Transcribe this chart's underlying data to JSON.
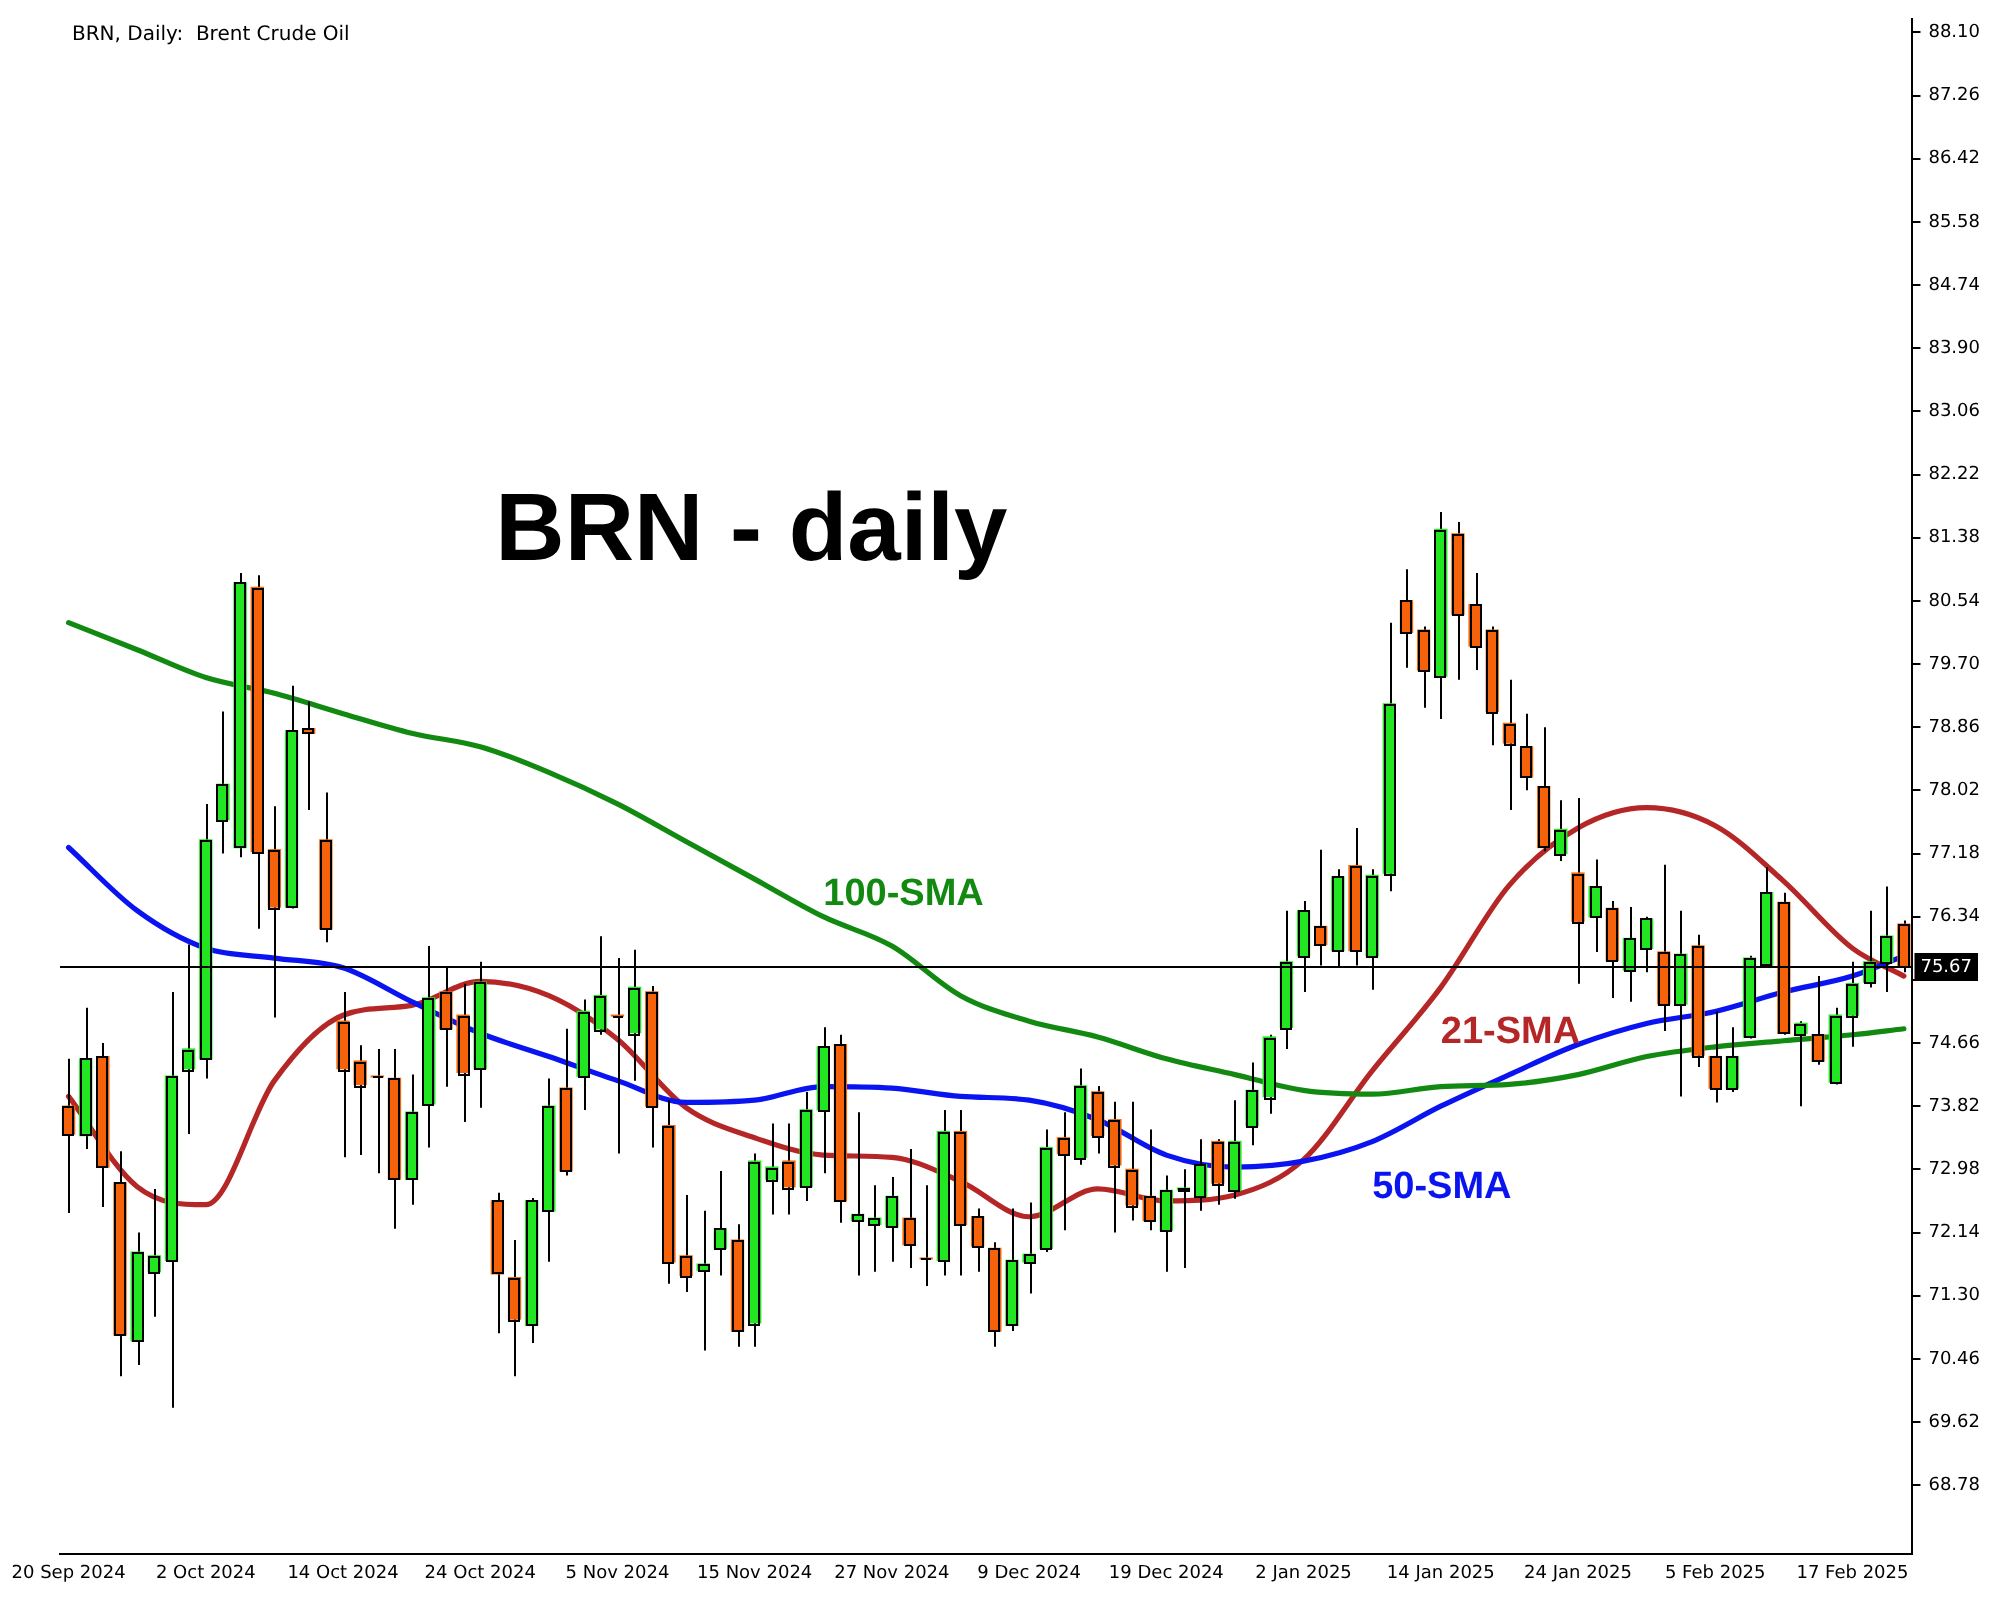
{
  "chart_data": {
    "type": "candlestick",
    "title": "BRN, Daily:  Brent Crude Oil",
    "subtitle": "BRN - daily",
    "categories": [
      "20 Sep 2024",
      null,
      null,
      null,
      null,
      null,
      null,
      null,
      "2 Oct 2024",
      null,
      null,
      null,
      null,
      null,
      null,
      null,
      "14 Oct 2024",
      null,
      null,
      null,
      null,
      null,
      null,
      null,
      "24 Oct 2024",
      null,
      null,
      null,
      null,
      null,
      null,
      null,
      "5 Nov 2024",
      null,
      null,
      null,
      null,
      null,
      null,
      null,
      "15 Nov 2024",
      null,
      null,
      null,
      null,
      null,
      null,
      null,
      "27 Nov 2024",
      null,
      null,
      null,
      null,
      null,
      null,
      null,
      "9 Dec 2024",
      null,
      null,
      null,
      null,
      null,
      null,
      null,
      "19 Dec 2024",
      null,
      null,
      null,
      null,
      null,
      null,
      null,
      "2 Jan 2025",
      null,
      null,
      null,
      null,
      null,
      null,
      null,
      "14 Jan 2025",
      null,
      null,
      null,
      null,
      null,
      null,
      null,
      "24 Jan 2025",
      null,
      null,
      null,
      null,
      null,
      null,
      null,
      "5 Feb 2025",
      null,
      null,
      null,
      null,
      null,
      null,
      null,
      "17 Feb 2025",
      null,
      null,
      null
    ],
    "ohlc": [
      [
        73.82,
        74.45,
        72.4,
        73.45
      ],
      [
        73.43,
        75.13,
        73.25,
        74.45
      ],
      [
        74.48,
        74.66,
        72.48,
        73.01
      ],
      [
        72.8,
        73.22,
        70.23,
        70.78
      ],
      [
        70.7,
        72.14,
        70.38,
        71.88
      ],
      [
        71.62,
        72.72,
        71.02,
        71.83
      ],
      [
        71.77,
        75.34,
        69.81,
        74.22
      ],
      [
        74.32,
        75.97,
        73.45,
        74.58
      ],
      [
        74.45,
        77.84,
        74.19,
        77.36
      ],
      [
        77.63,
        79.07,
        77.18,
        78.1
      ],
      [
        77.26,
        80.91,
        77.13,
        80.78
      ],
      [
        80.72,
        80.88,
        76.18,
        77.21
      ],
      [
        77.23,
        77.81,
        75.0,
        76.47
      ],
      [
        76.47,
        79.41,
        76.45,
        78.81
      ],
      [
        78.84,
        79.2,
        77.76,
        78.78
      ],
      [
        77.36,
        77.99,
        76.0,
        76.18
      ],
      [
        74.95,
        75.34,
        73.14,
        74.32
      ],
      [
        74.42,
        74.63,
        73.17,
        74.11
      ],
      [
        74.22,
        74.58,
        72.93,
        74.21
      ],
      [
        74.19,
        74.58,
        72.19,
        72.85
      ],
      [
        72.85,
        74.24,
        72.51,
        73.74
      ],
      [
        73.85,
        75.95,
        73.27,
        75.26
      ],
      [
        75.34,
        75.66,
        74.08,
        74.85
      ],
      [
        75.03,
        75.45,
        73.61,
        74.27
      ],
      [
        74.32,
        75.74,
        73.8,
        75.47
      ],
      [
        72.56,
        72.67,
        70.8,
        71.59
      ],
      [
        71.54,
        72.04,
        70.23,
        70.99
      ],
      [
        70.91,
        72.6,
        70.67,
        72.56
      ],
      [
        72.43,
        74.19,
        71.75,
        73.82
      ],
      [
        74.06,
        74.85,
        72.9,
        72.96
      ],
      [
        74.22,
        75.24,
        73.77,
        75.08
      ],
      [
        74.85,
        76.08,
        74.77,
        75.29
      ],
      [
        75.03,
        75.79,
        73.19,
        75.02
      ],
      [
        74.8,
        75.9,
        74.16,
        75.4
      ],
      [
        75.34,
        75.42,
        73.27,
        73.82
      ],
      [
        73.56,
        73.9,
        71.46,
        71.75
      ],
      [
        71.83,
        72.64,
        71.35,
        71.57
      ],
      [
        71.64,
        72.43,
        70.57,
        71.72
      ],
      [
        71.93,
        72.96,
        71.57,
        72.19
      ],
      [
        72.04,
        72.25,
        70.62,
        70.83
      ],
      [
        70.94,
        73.19,
        70.62,
        73.09
      ],
      [
        72.85,
        73.59,
        72.38,
        73.01
      ],
      [
        73.09,
        73.59,
        72.38,
        72.75
      ],
      [
        72.75,
        74.01,
        72.56,
        73.77
      ],
      [
        73.77,
        74.87,
        72.93,
        74.61
      ],
      [
        74.64,
        74.77,
        72.27,
        72.56
      ],
      [
        72.3,
        73.74,
        71.57,
        72.38
      ],
      [
        72.25,
        72.77,
        71.62,
        72.33
      ],
      [
        72.22,
        72.88,
        71.75,
        72.62
      ],
      [
        72.33,
        73.25,
        71.67,
        71.98
      ],
      [
        71.8,
        72.77,
        71.43,
        71.79
      ],
      [
        71.77,
        73.77,
        71.57,
        73.48
      ],
      [
        73.48,
        73.77,
        71.57,
        72.25
      ],
      [
        72.35,
        72.46,
        71.62,
        71.96
      ],
      [
        71.93,
        72.01,
        70.62,
        70.83
      ],
      [
        70.91,
        72.46,
        70.83,
        71.77
      ],
      [
        71.75,
        72.54,
        71.33,
        71.85
      ],
      [
        71.93,
        73.51,
        71.88,
        73.27
      ],
      [
        73.4,
        73.74,
        72.17,
        73.19
      ],
      [
        73.14,
        74.32,
        73.04,
        74.09
      ],
      [
        74.01,
        74.09,
        73.19,
        73.43
      ],
      [
        73.64,
        73.88,
        72.14,
        73.04
      ],
      [
        72.98,
        73.88,
        72.3,
        72.51
      ],
      [
        72.62,
        73.51,
        72.17,
        72.3
      ],
      [
        72.17,
        72.9,
        71.62,
        72.7
      ],
      [
        72.71,
        72.98,
        71.67,
        72.73
      ],
      [
        72.62,
        73.38,
        72.43,
        73.04
      ],
      [
        73.35,
        73.38,
        72.51,
        72.8
      ],
      [
        72.7,
        73.9,
        72.59,
        73.35
      ],
      [
        73.56,
        74.4,
        73.3,
        74.03
      ],
      [
        73.95,
        74.77,
        73.72,
        74.74
      ],
      [
        74.87,
        76.42,
        74.58,
        75.74
      ],
      [
        75.82,
        76.55,
        75.34,
        76.42
      ],
      [
        76.21,
        77.23,
        75.69,
        75.97
      ],
      [
        75.89,
        76.97,
        75.66,
        76.87
      ],
      [
        77.02,
        77.52,
        75.69,
        75.89
      ],
      [
        75.82,
        76.97,
        75.37,
        76.89
      ],
      [
        76.92,
        80.25,
        76.68,
        79.17
      ],
      [
        80.54,
        80.96,
        79.65,
        80.12
      ],
      [
        80.15,
        80.2,
        79.12,
        79.62
      ],
      [
        79.54,
        81.72,
        78.97,
        81.49
      ],
      [
        81.43,
        81.59,
        79.49,
        80.36
      ],
      [
        80.49,
        80.91,
        79.62,
        79.94
      ],
      [
        80.15,
        80.2,
        78.62,
        79.07
      ],
      [
        78.91,
        79.49,
        77.76,
        78.65
      ],
      [
        78.6,
        79.04,
        78.02,
        78.2
      ],
      [
        78.07,
        78.86,
        77.21,
        77.26
      ],
      [
        77.18,
        77.89,
        77.08,
        77.5
      ],
      [
        76.92,
        77.92,
        75.45,
        76.28
      ],
      [
        76.34,
        77.1,
        75.87,
        76.74
      ],
      [
        76.45,
        76.55,
        75.26,
        75.76
      ],
      [
        75.63,
        76.47,
        75.21,
        76.05
      ],
      [
        75.92,
        76.34,
        75.6,
        76.31
      ],
      [
        75.87,
        77.03,
        74.82,
        75.18
      ],
      [
        75.18,
        76.42,
        73.95,
        75.84
      ],
      [
        75.95,
        76.1,
        74.34,
        74.5
      ],
      [
        74.48,
        75.08,
        73.87,
        74.06
      ],
      [
        74.06,
        74.87,
        74.01,
        74.48
      ],
      [
        74.74,
        75.82,
        74.72,
        75.79
      ],
      [
        75.69,
        77.0,
        75.66,
        76.66
      ],
      [
        76.53,
        76.66,
        74.77,
        74.79
      ],
      [
        74.79,
        74.95,
        73.82,
        74.92
      ],
      [
        74.77,
        75.55,
        74.37,
        74.42
      ],
      [
        74.14,
        75.13,
        74.11,
        75.03
      ],
      [
        75.03,
        75.74,
        74.61,
        75.45
      ],
      [
        75.47,
        76.42,
        75.4,
        75.74
      ],
      [
        75.74,
        76.74,
        75.34,
        76.08
      ],
      [
        76.24,
        76.29,
        75.6,
        75.67
      ]
    ],
    "colors": [
      "#f5620a",
      "#22e622",
      "#f5620a",
      "#f5620a",
      "#22e622",
      "#22e622",
      "#22e622",
      "#22e622",
      "#22e622",
      "#22e622",
      "#22e622",
      "#f5620a",
      "#f5620a",
      "#22e622",
      "#f5620a",
      "#f5620a",
      "#f5620a",
      "#f5620a",
      "#f5620a",
      "#f5620a",
      "#22e622",
      "#22e622",
      "#f5620a",
      "#f5620a",
      "#22e622",
      "#f5620a",
      "#f5620a",
      "#22e622",
      "#22e622",
      "#f5620a",
      "#22e622",
      "#22e622",
      "#f5620a",
      "#22e622",
      "#f5620a",
      "#f5620a",
      "#f5620a",
      "#22e622",
      "#22e622",
      "#f5620a",
      "#22e622",
      "#22e622",
      "#f5620a",
      "#22e622",
      "#22e622",
      "#f5620a",
      "#22e622",
      "#22e622",
      "#22e622",
      "#f5620a",
      "#f5620a",
      "#22e622",
      "#f5620a",
      "#f5620a",
      "#f5620a",
      "#22e622",
      "#22e622",
      "#22e622",
      "#f5620a",
      "#22e622",
      "#f5620a",
      "#f5620a",
      "#f5620a",
      "#f5620a",
      "#22e622",
      "#22e622",
      "#22e622",
      "#f5620a",
      "#22e622",
      "#22e622",
      "#22e622",
      "#22e622",
      "#22e622",
      "#f5620a",
      "#22e622",
      "#f5620a",
      "#22e622",
      "#22e622",
      "#f5620a",
      "#f5620a",
      "#22e622",
      "#f5620a",
      "#f5620a",
      "#f5620a",
      "#f5620a",
      "#f5620a",
      "#f5620a",
      "#22e622",
      "#f5620a",
      "#22e622",
      "#f5620a",
      "#22e622",
      "#22e622",
      "#f5620a",
      "#22e622",
      "#f5620a",
      "#f5620a",
      "#22e622",
      "#22e622",
      "#22e622",
      "#f5620a",
      "#22e622",
      "#f5620a",
      "#22e622",
      "#22e622",
      "#22e622",
      "#22e622",
      "#f5620a"
    ],
    "series": [
      {
        "name": "100-SMA",
        "type": "line",
        "color": "#128a12",
        "values": [
          80.25,
          null,
          null,
          null,
          79.89,
          null,
          null,
          null,
          79.52,
          null,
          null,
          null,
          79.31,
          null,
          null,
          null,
          79.04,
          null,
          null,
          null,
          78.78,
          null,
          null,
          null,
          78.6,
          null,
          null,
          null,
          78.26,
          null,
          null,
          null,
          77.84,
          null,
          null,
          null,
          77.34,
          null,
          null,
          null,
          76.84,
          null,
          null,
          null,
          76.34,
          null,
          null,
          null,
          75.95,
          null,
          null,
          null,
          75.29,
          null,
          null,
          null,
          74.95,
          null,
          null,
          null,
          74.74,
          null,
          null,
          null,
          74.45,
          null,
          null,
          null,
          74.24,
          null,
          null,
          null,
          74.03,
          null,
          null,
          null,
          73.98,
          null,
          null,
          null,
          74.08,
          null,
          null,
          null,
          74.11,
          null,
          null,
          null,
          74.24,
          null,
          null,
          null,
          74.48,
          null,
          null,
          null,
          74.61,
          null,
          null,
          null,
          74.69,
          null,
          null,
          null,
          74.77,
          null,
          null,
          74.85
        ]
      },
      {
        "name": "50-SMA",
        "type": "line",
        "color": "#0a14f0",
        "values": [
          77.26,
          null,
          null,
          null,
          76.42,
          null,
          null,
          null,
          75.92,
          null,
          null,
          null,
          75.79,
          null,
          null,
          null,
          75.66,
          null,
          null,
          null,
          75.21,
          null,
          null,
          null,
          74.79,
          null,
          null,
          null,
          74.48,
          null,
          null,
          null,
          74.16,
          null,
          null,
          null,
          73.87,
          null,
          null,
          null,
          73.9,
          null,
          null,
          null,
          74.08,
          null,
          null,
          null,
          74.06,
          null,
          null,
          null,
          73.95,
          null,
          null,
          null,
          73.9,
          null,
          null,
          null,
          73.64,
          null,
          null,
          null,
          73.17,
          null,
          null,
          null,
          73.01,
          null,
          null,
          null,
          73.09,
          null,
          null,
          null,
          73.35,
          null,
          null,
          null,
          73.82,
          null,
          null,
          null,
          74.24,
          null,
          null,
          null,
          74.64,
          null,
          null,
          null,
          74.92,
          null,
          null,
          null,
          75.08,
          null,
          null,
          null,
          75.34,
          null,
          null,
          null,
          75.55,
          null,
          null,
          75.82
        ]
      },
      {
        "name": "21-SMA",
        "type": "line",
        "color": "#b52626",
        "values": [
          73.95,
          null,
          null,
          null,
          72.75,
          null,
          null,
          null,
          72.51,
          null,
          null,
          null,
          74.16,
          null,
          null,
          null,
          75.03,
          null,
          null,
          null,
          75.16,
          null,
          null,
          null,
          75.48,
          null,
          null,
          null,
          75.29,
          null,
          null,
          null,
          74.71,
          null,
          null,
          null,
          73.8,
          null,
          null,
          null,
          73.4,
          null,
          null,
          null,
          73.17,
          null,
          null,
          null,
          73.14,
          null,
          null,
          null,
          72.82,
          null,
          null,
          null,
          72.35,
          null,
          null,
          null,
          72.72,
          null,
          null,
          null,
          72.56,
          null,
          null,
          null,
          72.64,
          null,
          null,
          null,
          73.11,
          null,
          null,
          null,
          74.29,
          null,
          null,
          null,
          75.4,
          null,
          null,
          null,
          76.76,
          null,
          null,
          null,
          77.52,
          null,
          null,
          null,
          77.79,
          null,
          null,
          null,
          77.55,
          null,
          null,
          null,
          76.81,
          null,
          null,
          null,
          75.92,
          null,
          null,
          75.55
        ]
      }
    ],
    "ylim": [
      67.86,
      88.28
    ],
    "yticks": [
      68.78,
      69.62,
      70.46,
      {
        "value": 71.3,
        "label": "71.30"
      },
      72.14,
      72.98,
      73.82,
      74.66,
      {
        "value": 75.5,
        "label": null
      },
      76.34,
      77.18,
      78.02,
      78.86,
      {
        "value": 79.7,
        "label": "79.70"
      },
      80.54,
      81.38,
      82.22,
      83.06,
      {
        "value": 83.9,
        "label": "83.90"
      },
      84.74,
      85.58,
      86.42,
      87.26,
      {
        "value": 88.1,
        "label": "88.10"
      }
    ],
    "ref_lines": [
      {
        "axis": "y",
        "value": 75.67,
        "label": "75.67",
        "color": "#000000"
      }
    ],
    "grid": false,
    "legend": false
  }
}
